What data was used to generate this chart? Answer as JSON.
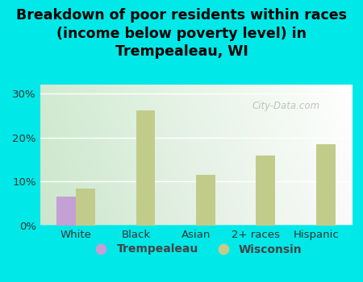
{
  "title": "Breakdown of poor residents within races\n(income below poverty level) in\nTrempealeau, WI",
  "categories": [
    "White",
    "Black",
    "Asian",
    "2+ races",
    "Hispanic"
  ],
  "trempealeau_values": [
    6.5,
    0,
    0,
    0,
    0
  ],
  "wisconsin_values": [
    8.5,
    26.2,
    11.5,
    16.0,
    18.5
  ],
  "trempealeau_color": "#c4a0d4",
  "wisconsin_color": "#c2cc8a",
  "background_color": "#00e8e8",
  "ylim": [
    0,
    32
  ],
  "yticks": [
    0,
    10,
    20,
    30
  ],
  "bar_width": 0.32,
  "legend_trempealeau": "Trempealeau",
  "legend_wisconsin": "Wisconsin",
  "watermark": "City-Data.com",
  "title_fontsize": 12.5,
  "tick_fontsize": 9.5,
  "legend_fontsize": 10,
  "grid_color": "#ffffff",
  "plot_bg_topleft": "#e8f5e8",
  "plot_bg_bottomleft": "#c8e8c0",
  "plot_bg_topright": "#f8f8f0",
  "plot_bg_bottomright": "#e8ecd8"
}
